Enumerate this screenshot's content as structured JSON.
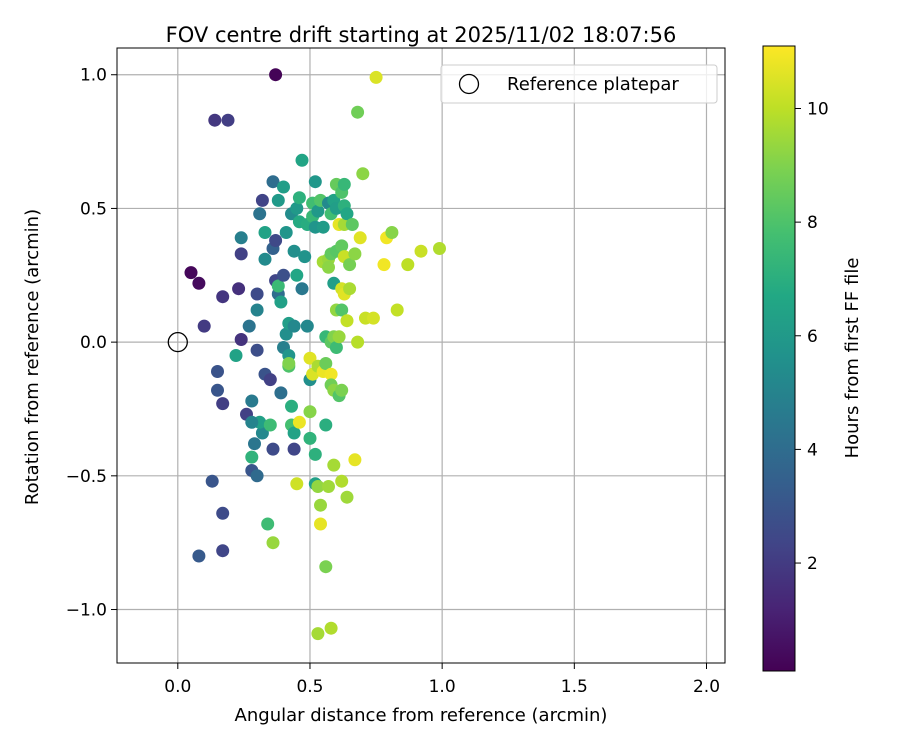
{
  "chart_data": {
    "type": "scatter",
    "title": "FOV centre drift starting at 2025/11/02 18:07:56",
    "xlabel": "Angular distance from reference (arcmin)",
    "ylabel": "Rotation from reference (arcmin)",
    "xlim": [
      -0.23,
      2.07
    ],
    "ylim": [
      -1.2,
      1.1
    ],
    "xticks": [
      0.0,
      0.5,
      1.0,
      1.5,
      2.0
    ],
    "xtick_labels": [
      "0.0",
      "0.5",
      "1.0",
      "1.5",
      "2.0"
    ],
    "yticks": [
      -1.0,
      -0.5,
      0.0,
      0.5,
      1.0
    ],
    "ytick_labels": [
      "−1.0",
      "−0.5",
      "0.0",
      "0.5",
      "1.0"
    ],
    "grid": true,
    "legend": {
      "position": "top-right",
      "entries": [
        "Reference platepar"
      ]
    },
    "colorbar": {
      "label": "Hours from first FF file",
      "colormap": "viridis",
      "range": [
        0.1,
        11.1
      ],
      "ticks": [
        2,
        4,
        6,
        8,
        10
      ],
      "tick_labels": [
        "2",
        "4",
        "6",
        "8",
        "10"
      ]
    },
    "reference_point": {
      "name": "Reference platepar",
      "x": 0.0,
      "y": 0.0
    },
    "points": [
      {
        "x": 0.37,
        "y": 1.0,
        "c": 0.2
      },
      {
        "x": 0.05,
        "y": 0.26,
        "c": 0.3
      },
      {
        "x": 0.08,
        "y": 0.22,
        "c": 0.4
      },
      {
        "x": 0.14,
        "y": 0.83,
        "c": 1.9
      },
      {
        "x": 0.19,
        "y": 0.83,
        "c": 2.1
      },
      {
        "x": 0.1,
        "y": 0.06,
        "c": 2.0
      },
      {
        "x": 0.17,
        "y": 0.17,
        "c": 1.8
      },
      {
        "x": 0.23,
        "y": 0.2,
        "c": 1.6
      },
      {
        "x": 0.24,
        "y": 0.01,
        "c": 1.7
      },
      {
        "x": 0.15,
        "y": -0.11,
        "c": 2.9
      },
      {
        "x": 0.15,
        "y": -0.18,
        "c": 3.0
      },
      {
        "x": 0.17,
        "y": -0.23,
        "c": 2.1
      },
      {
        "x": 0.08,
        "y": -0.8,
        "c": 3.2
      },
      {
        "x": 0.13,
        "y": -0.52,
        "c": 3.0
      },
      {
        "x": 0.17,
        "y": -0.64,
        "c": 2.6
      },
      {
        "x": 0.17,
        "y": -0.78,
        "c": 2.4
      },
      {
        "x": 0.24,
        "y": 0.33,
        "c": 2.2
      },
      {
        "x": 0.24,
        "y": 0.39,
        "c": 4.8
      },
      {
        "x": 0.27,
        "y": 0.06,
        "c": 4.3
      },
      {
        "x": 0.26,
        "y": -0.27,
        "c": 2.2
      },
      {
        "x": 0.28,
        "y": -0.22,
        "c": 4.6
      },
      {
        "x": 0.28,
        "y": -0.48,
        "c": 3.0
      },
      {
        "x": 0.29,
        "y": -0.38,
        "c": 4.4
      },
      {
        "x": 0.3,
        "y": -0.5,
        "c": 3.9
      },
      {
        "x": 0.3,
        "y": -0.03,
        "c": 2.7
      },
      {
        "x": 0.3,
        "y": 0.12,
        "c": 5.0
      },
      {
        "x": 0.3,
        "y": 0.18,
        "c": 2.6
      },
      {
        "x": 0.31,
        "y": 0.48,
        "c": 4.3
      },
      {
        "x": 0.32,
        "y": -0.34,
        "c": 5.2
      },
      {
        "x": 0.31,
        "y": -0.3,
        "c": 6.3
      },
      {
        "x": 0.32,
        "y": 0.53,
        "c": 2.3
      },
      {
        "x": 0.33,
        "y": 0.41,
        "c": 6.4
      },
      {
        "x": 0.33,
        "y": 0.31,
        "c": 5.3
      },
      {
        "x": 0.33,
        "y": -0.12,
        "c": 2.9
      },
      {
        "x": 0.35,
        "y": -0.14,
        "c": 2.2
      },
      {
        "x": 0.35,
        "y": -0.31,
        "c": 7.6
      },
      {
        "x": 0.36,
        "y": 0.6,
        "c": 4.0
      },
      {
        "x": 0.36,
        "y": 0.35,
        "c": 3.5
      },
      {
        "x": 0.37,
        "y": 0.38,
        "c": 2.5
      },
      {
        "x": 0.37,
        "y": 0.23,
        "c": 2.4
      },
      {
        "x": 0.38,
        "y": 0.18,
        "c": 4.0
      },
      {
        "x": 0.38,
        "y": 0.21,
        "c": 7.5
      },
      {
        "x": 0.38,
        "y": 0.53,
        "c": 6.0
      },
      {
        "x": 0.39,
        "y": 0.15,
        "c": 6.3
      },
      {
        "x": 0.39,
        "y": -0.19,
        "c": 4.1
      },
      {
        "x": 0.4,
        "y": 0.58,
        "c": 6.2
      },
      {
        "x": 0.4,
        "y": 0.25,
        "c": 2.8
      },
      {
        "x": 0.4,
        "y": -0.02,
        "c": 4.8
      },
      {
        "x": 0.41,
        "y": 0.41,
        "c": 5.8
      },
      {
        "x": 0.41,
        "y": 0.03,
        "c": 5.5
      },
      {
        "x": 0.42,
        "y": 0.07,
        "c": 6.2
      },
      {
        "x": 0.42,
        "y": -0.05,
        "c": 5.8
      },
      {
        "x": 0.42,
        "y": -0.09,
        "c": 8.0
      },
      {
        "x": 0.43,
        "y": 0.48,
        "c": 5.4
      },
      {
        "x": 0.43,
        "y": -0.24,
        "c": 7.0
      },
      {
        "x": 0.43,
        "y": -0.31,
        "c": 7.8
      },
      {
        "x": 0.44,
        "y": 0.34,
        "c": 5.5
      },
      {
        "x": 0.44,
        "y": 0.06,
        "c": 5.2
      },
      {
        "x": 0.44,
        "y": -0.4,
        "c": 2.4
      },
      {
        "x": 0.44,
        "y": -0.34,
        "c": 6.4
      },
      {
        "x": 0.45,
        "y": 0.5,
        "c": 6.0
      },
      {
        "x": 0.45,
        "y": 0.25,
        "c": 6.6
      },
      {
        "x": 0.45,
        "y": -0.53,
        "c": 10.3
      },
      {
        "x": 0.46,
        "y": 0.54,
        "c": 7.1
      },
      {
        "x": 0.46,
        "y": 0.45,
        "c": 6.8
      },
      {
        "x": 0.46,
        "y": -0.3,
        "c": 10.8
      },
      {
        "x": 0.47,
        "y": 0.68,
        "c": 6.5
      },
      {
        "x": 0.47,
        "y": 0.2,
        "c": 4.5
      },
      {
        "x": 0.48,
        "y": 0.32,
        "c": 5.7
      },
      {
        "x": 0.49,
        "y": 0.44,
        "c": 6.9
      },
      {
        "x": 0.49,
        "y": 0.06,
        "c": 5.2
      },
      {
        "x": 0.5,
        "y": -0.14,
        "c": 5.5
      },
      {
        "x": 0.5,
        "y": -0.26,
        "c": 9.1
      },
      {
        "x": 0.5,
        "y": -0.06,
        "c": 10.6
      },
      {
        "x": 0.5,
        "y": -0.36,
        "c": 7.2
      },
      {
        "x": 0.51,
        "y": 0.52,
        "c": 7.7
      },
      {
        "x": 0.51,
        "y": 0.47,
        "c": 7.4
      },
      {
        "x": 0.51,
        "y": -0.12,
        "c": 10.5
      },
      {
        "x": 0.52,
        "y": 0.6,
        "c": 5.9
      },
      {
        "x": 0.52,
        "y": 0.43,
        "c": 5.8
      },
      {
        "x": 0.52,
        "y": -0.42,
        "c": 7.1
      },
      {
        "x": 0.52,
        "y": -0.53,
        "c": 6.3
      },
      {
        "x": 0.53,
        "y": 0.49,
        "c": 6.0
      },
      {
        "x": 0.53,
        "y": -0.09,
        "c": 9.7
      },
      {
        "x": 0.53,
        "y": -0.54,
        "c": 9.3
      },
      {
        "x": 0.53,
        "y": -1.09,
        "c": 9.6
      },
      {
        "x": 0.54,
        "y": 0.53,
        "c": 8.1
      },
      {
        "x": 0.54,
        "y": -0.61,
        "c": 9.4
      },
      {
        "x": 0.54,
        "y": -0.68,
        "c": 10.7
      },
      {
        "x": 0.55,
        "y": 0.43,
        "c": 6.1
      },
      {
        "x": 0.55,
        "y": 0.3,
        "c": 9.6
      },
      {
        "x": 0.55,
        "y": -0.11,
        "c": 10.8
      },
      {
        "x": 0.56,
        "y": 0.02,
        "c": 7.4
      },
      {
        "x": 0.56,
        "y": -0.08,
        "c": 8.6
      },
      {
        "x": 0.56,
        "y": -0.31,
        "c": 7.0
      },
      {
        "x": 0.56,
        "y": -0.84,
        "c": 8.9
      },
      {
        "x": 0.57,
        "y": 0.52,
        "c": 5.3
      },
      {
        "x": 0.57,
        "y": 0.31,
        "c": 9.4
      },
      {
        "x": 0.57,
        "y": 0.28,
        "c": 9.2
      },
      {
        "x": 0.57,
        "y": -0.54,
        "c": 9.5
      },
      {
        "x": 0.58,
        "y": 0.48,
        "c": 7.7
      },
      {
        "x": 0.58,
        "y": 0.33,
        "c": 8.4
      },
      {
        "x": 0.58,
        "y": 0.0,
        "c": 8.3
      },
      {
        "x": 0.58,
        "y": -0.12,
        "c": 10.9
      },
      {
        "x": 0.58,
        "y": -0.16,
        "c": 8.7
      },
      {
        "x": 0.58,
        "y": -1.07,
        "c": 9.8
      },
      {
        "x": 0.59,
        "y": 0.53,
        "c": 6.4
      },
      {
        "x": 0.59,
        "y": 0.22,
        "c": 6.2
      },
      {
        "x": 0.59,
        "y": 0.02,
        "c": 9.0
      },
      {
        "x": 0.59,
        "y": -0.18,
        "c": 9.2
      },
      {
        "x": 0.59,
        "y": -0.46,
        "c": 9.6
      },
      {
        "x": 0.6,
        "y": 0.59,
        "c": 8.5
      },
      {
        "x": 0.6,
        "y": 0.5,
        "c": 6.2
      },
      {
        "x": 0.6,
        "y": 0.34,
        "c": 8.2
      },
      {
        "x": 0.6,
        "y": 0.12,
        "c": 9.3
      },
      {
        "x": 0.6,
        "y": -0.02,
        "c": 7.6
      },
      {
        "x": 0.61,
        "y": 0.44,
        "c": 10.7
      },
      {
        "x": 0.61,
        "y": 0.02,
        "c": 9.4
      },
      {
        "x": 0.61,
        "y": -0.2,
        "c": 8.1
      },
      {
        "x": 0.62,
        "y": 0.56,
        "c": 8.0
      },
      {
        "x": 0.62,
        "y": 0.36,
        "c": 8.4
      },
      {
        "x": 0.62,
        "y": 0.2,
        "c": 10.4
      },
      {
        "x": 0.62,
        "y": 0.12,
        "c": 8.1
      },
      {
        "x": 0.62,
        "y": -0.18,
        "c": 8.9
      },
      {
        "x": 0.62,
        "y": -0.52,
        "c": 9.8
      },
      {
        "x": 0.63,
        "y": 0.59,
        "c": 7.4
      },
      {
        "x": 0.63,
        "y": 0.51,
        "c": 7.1
      },
      {
        "x": 0.63,
        "y": 0.44,
        "c": 9.6
      },
      {
        "x": 0.63,
        "y": 0.32,
        "c": 10.2
      },
      {
        "x": 0.63,
        "y": 0.18,
        "c": 10.6
      },
      {
        "x": 0.64,
        "y": 0.48,
        "c": 6.6
      },
      {
        "x": 0.64,
        "y": 0.08,
        "c": 10.1
      },
      {
        "x": 0.64,
        "y": -0.58,
        "c": 9.5
      },
      {
        "x": 0.65,
        "y": 0.29,
        "c": 8.8
      },
      {
        "x": 0.65,
        "y": 0.2,
        "c": 9.7
      },
      {
        "x": 0.66,
        "y": 0.44,
        "c": 8.3
      },
      {
        "x": 0.67,
        "y": 0.33,
        "c": 9.2
      },
      {
        "x": 0.67,
        "y": -0.44,
        "c": 10.7
      },
      {
        "x": 0.68,
        "y": 0.86,
        "c": 8.7
      },
      {
        "x": 0.68,
        "y": 0.0,
        "c": 9.9
      },
      {
        "x": 0.69,
        "y": 0.39,
        "c": 10.6
      },
      {
        "x": 0.7,
        "y": 0.63,
        "c": 9.2
      },
      {
        "x": 0.71,
        "y": 0.09,
        "c": 10.2
      },
      {
        "x": 0.74,
        "y": 0.09,
        "c": 10.4
      },
      {
        "x": 0.75,
        "y": 0.99,
        "c": 10.5
      },
      {
        "x": 0.78,
        "y": 0.29,
        "c": 10.9
      },
      {
        "x": 0.79,
        "y": 0.39,
        "c": 10.9
      },
      {
        "x": 0.81,
        "y": 0.41,
        "c": 9.1
      },
      {
        "x": 0.83,
        "y": 0.12,
        "c": 10.1
      },
      {
        "x": 0.87,
        "y": 0.29,
        "c": 10.0
      },
      {
        "x": 0.92,
        "y": 0.34,
        "c": 10.2
      },
      {
        "x": 0.99,
        "y": 0.35,
        "c": 9.8
      },
      {
        "x": 0.28,
        "y": -0.3,
        "c": 5.0
      },
      {
        "x": 0.22,
        "y": -0.05,
        "c": 6.4
      },
      {
        "x": 0.28,
        "y": -0.43,
        "c": 7.2
      },
      {
        "x": 0.34,
        "y": -0.68,
        "c": 7.6
      },
      {
        "x": 0.36,
        "y": -0.75,
        "c": 9.4
      },
      {
        "x": 0.36,
        "y": -0.4,
        "c": 2.6
      },
      {
        "x": 0.42,
        "y": -0.08,
        "c": 9.0
      }
    ]
  }
}
